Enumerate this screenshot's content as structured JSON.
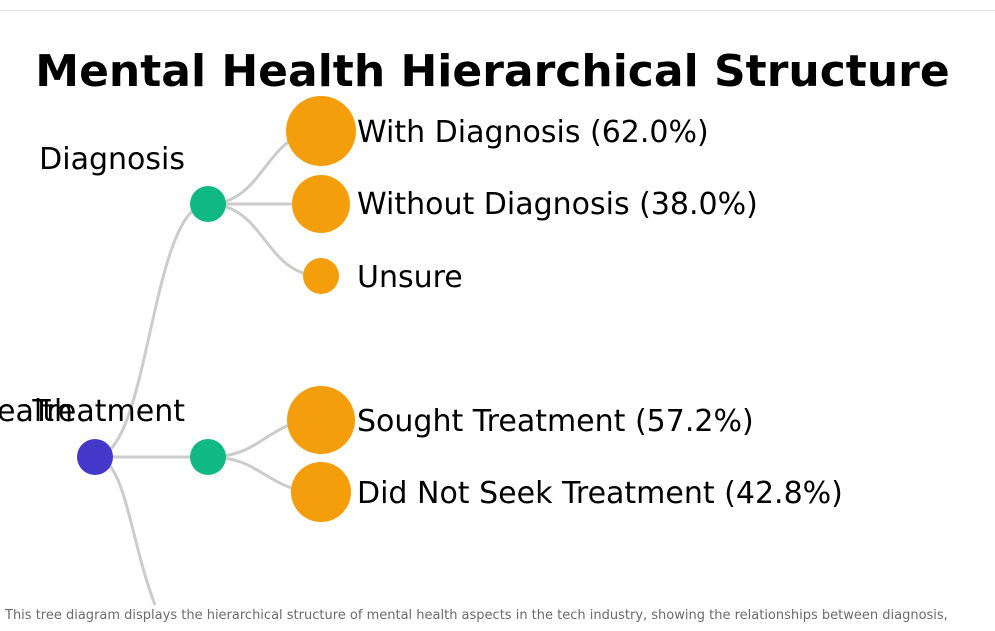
{
  "title": "Mental Health Hierarchical Structure",
  "tree": {
    "root": {
      "label": "Mental Health",
      "color": "#4338ca"
    },
    "branches": [
      {
        "label": "Diagnosis",
        "color": "#10b981",
        "children": [
          {
            "label": "With Diagnosis (62.0%)",
            "percent": 62.0,
            "color": "#f59e0b"
          },
          {
            "label": "Without Diagnosis (38.0%)",
            "percent": 38.0,
            "color": "#f59e0b"
          },
          {
            "label": "Unsure",
            "percent": null,
            "color": "#f59e0b"
          }
        ]
      },
      {
        "label": "Treatment",
        "color": "#10b981",
        "children": [
          {
            "label": "Sought Treatment (57.2%)",
            "percent": 57.2,
            "color": "#f59e0b"
          },
          {
            "label": "Did Not Seek Treatment (42.8%)",
            "percent": 42.8,
            "color": "#f59e0b"
          }
        ]
      }
    ],
    "link_color": "#cccccc"
  },
  "caption": "This tree diagram displays the hierarchical structure of mental health aspects in the tech industry, showing the relationships between diagnosis,"
}
